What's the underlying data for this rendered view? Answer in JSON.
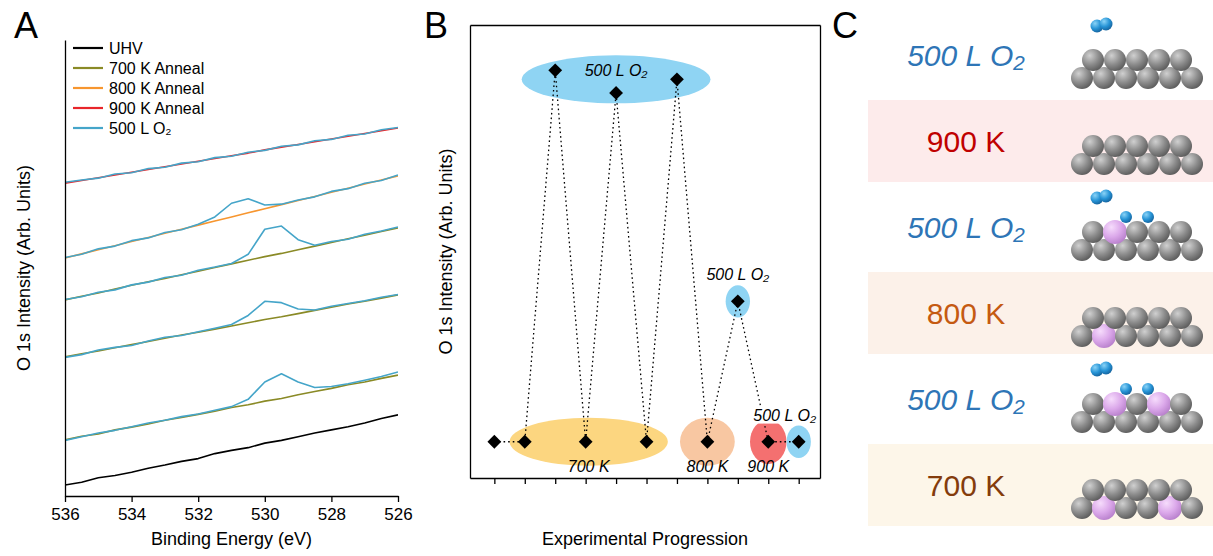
{
  "chart_data": [
    {
      "type": "line",
      "panel_label": "A",
      "xlabel": "Binding Energy (eV)",
      "ylabel": "O 1s Intensity (Arb. Units)",
      "x": [
        536,
        535.5,
        535,
        534.5,
        534,
        533.5,
        533,
        532.5,
        532,
        531.5,
        531,
        530.5,
        530,
        529.5,
        529,
        528.5,
        528,
        527.5,
        527,
        526.5,
        526
      ],
      "xlim": [
        536,
        526
      ],
      "ylim": [
        0,
        10
      ],
      "xticks": [
        536,
        534,
        532,
        530,
        528,
        526
      ],
      "tick_labels": "x",
      "legend": "upper left",
      "series": [
        {
          "name": "UHV",
          "color": "#000000",
          "values": [
            0.24,
            0.3,
            0.4,
            0.45,
            0.52,
            0.61,
            0.68,
            0.76,
            0.82,
            0.93,
            1.0,
            1.06,
            1.16,
            1.22,
            1.3,
            1.38,
            1.45,
            1.52,
            1.6,
            1.7,
            1.78
          ]
        },
        {
          "name": "700 K Anneal",
          "color": "#8a8a26",
          "values": [
            1.23,
            1.31,
            1.36,
            1.45,
            1.51,
            1.58,
            1.66,
            1.72,
            1.79,
            1.86,
            1.94,
            2.0,
            2.08,
            2.14,
            2.22,
            2.29,
            2.36,
            2.44,
            2.5,
            2.58,
            2.65
          ]
        },
        {
          "name": "700 K Anneal",
          "color": "#8a8a26",
          "values": [
            3.05,
            3.12,
            3.18,
            3.25,
            3.32,
            3.39,
            3.46,
            3.53,
            3.59,
            3.66,
            3.73,
            3.8,
            3.87,
            3.93,
            4.0,
            4.07,
            4.14,
            4.21,
            4.27,
            4.34,
            4.41
          ]
        },
        {
          "name": "700 K Anneal",
          "color": "#8a8a26",
          "values": [
            4.3,
            4.38,
            4.45,
            4.54,
            4.62,
            4.7,
            4.77,
            4.85,
            4.93,
            5.01,
            5.09,
            5.17,
            5.25,
            5.32,
            5.4,
            5.48,
            5.56,
            5.64,
            5.72,
            5.8,
            5.88
          ]
        },
        {
          "name": "800 K Anneal",
          "color": "#f7962f",
          "values": [
            5.22,
            5.31,
            5.4,
            5.49,
            5.58,
            5.67,
            5.76,
            5.85,
            5.94,
            6.03,
            6.12,
            6.21,
            6.3,
            6.39,
            6.48,
            6.57,
            6.66,
            6.75,
            6.84,
            6.93,
            7.02
          ]
        },
        {
          "name": "900 K Anneal",
          "color": "#e8262a",
          "values": [
            6.86,
            6.92,
            6.98,
            7.04,
            7.1,
            7.16,
            7.22,
            7.28,
            7.34,
            7.4,
            7.46,
            7.52,
            7.59,
            7.65,
            7.71,
            7.77,
            7.83,
            7.89,
            7.95,
            8.01,
            8.07
          ]
        },
        {
          "name": "500 L O₂",
          "color": "#45a5c9",
          "values": [
            1.22,
            1.3,
            1.38,
            1.44,
            1.52,
            1.6,
            1.66,
            1.74,
            1.8,
            1.88,
            1.96,
            2.12,
            2.5,
            2.68,
            2.5,
            2.38,
            2.4,
            2.46,
            2.54,
            2.62,
            2.72
          ]
        },
        {
          "name": "500 L O₂",
          "color": "#45a5c9",
          "values": [
            3.04,
            3.1,
            3.2,
            3.26,
            3.3,
            3.4,
            3.48,
            3.52,
            3.6,
            3.68,
            3.76,
            3.96,
            4.27,
            4.24,
            4.1,
            4.08,
            4.16,
            4.22,
            4.28,
            4.36,
            4.42
          ]
        },
        {
          "name": "500 L O₂",
          "color": "#45a5c9",
          "values": [
            4.31,
            4.37,
            4.47,
            4.52,
            4.63,
            4.69,
            4.79,
            4.84,
            4.95,
            5.02,
            5.1,
            5.3,
            5.85,
            5.92,
            5.62,
            5.5,
            5.58,
            5.63,
            5.74,
            5.81,
            5.9
          ]
        },
        {
          "name": "500 L O₂",
          "color": "#45a5c9",
          "values": [
            5.23,
            5.3,
            5.42,
            5.48,
            5.6,
            5.66,
            5.78,
            5.84,
            5.96,
            6.12,
            6.42,
            6.52,
            6.38,
            6.4,
            6.49,
            6.56,
            6.68,
            6.74,
            6.86,
            6.92,
            7.04
          ]
        },
        {
          "name": "500 L O₂",
          "color": "#45a5c9",
          "values": [
            6.88,
            6.93,
            6.97,
            7.06,
            7.09,
            7.18,
            7.21,
            7.3,
            7.33,
            7.42,
            7.45,
            7.54,
            7.58,
            7.67,
            7.7,
            7.79,
            7.82,
            7.91,
            7.94,
            8.03,
            8.08
          ]
        }
      ]
    },
    {
      "type": "line",
      "panel_label": "B",
      "xlabel": "Experimental Progression",
      "ylabel": "O 1s Intensity (Arb. Units)",
      "x": [
        0,
        1,
        2,
        3,
        4,
        5,
        6,
        7,
        8,
        9,
        10
      ],
      "values": [
        0.8,
        0.8,
        9.0,
        0.8,
        8.5,
        0.8,
        8.8,
        0.8,
        3.9,
        0.8,
        0.8
      ],
      "color": "#000000",
      "marker": "diamond",
      "line_style": "dotted",
      "xlim": [
        -0.8,
        10.7
      ],
      "ylim": [
        0,
        10
      ],
      "xticks": [
        0,
        1,
        2,
        3,
        4,
        5,
        6,
        7,
        8,
        9,
        10
      ],
      "tick_labels": false,
      "annotations": [
        {
          "text": "500 L O₂",
          "x": [
            0.9,
            7.1
          ],
          "y": 8.8,
          "color": "#8fd4f3"
        },
        {
          "text": "700 K",
          "x": [
            0.5,
            5.7
          ],
          "y": 0.8,
          "color": "#fcd680"
        },
        {
          "text": "800 K",
          "x": [
            6.1,
            7.9
          ],
          "y": 0.8,
          "color": "#f8c7a2"
        },
        {
          "text": "900 K",
          "x": [
            8.4,
            9.6
          ],
          "y": 0.8,
          "color": "#f47070"
        },
        {
          "text": "500 L O₂",
          "x": [
            7.6,
            8.4
          ],
          "y": 3.9,
          "color": "#8fd4f3"
        },
        {
          "text": "500 L O₂",
          "x": [
            9.6,
            10.4
          ],
          "y": 0.8,
          "color": "#8fd4f3"
        }
      ]
    }
  ],
  "diagram": {
    "panel_label": "C",
    "rows": [
      {
        "text": "500 L O₂",
        "color": "#2e75b6"
      },
      {
        "text": "900 K",
        "color": "#c00000",
        "background": "#fdebeb"
      },
      {
        "text": "500 L O₂",
        "color": "#2e75b6"
      },
      {
        "text": "800 K",
        "color": "#c55a11",
        "background": "#fcf1e9"
      },
      {
        "text": "500 L O₂",
        "color": "#2e75b6"
      },
      {
        "text": "700 K",
        "color": "#843c0c",
        "background": "#fdf6e9"
      }
    ]
  }
}
